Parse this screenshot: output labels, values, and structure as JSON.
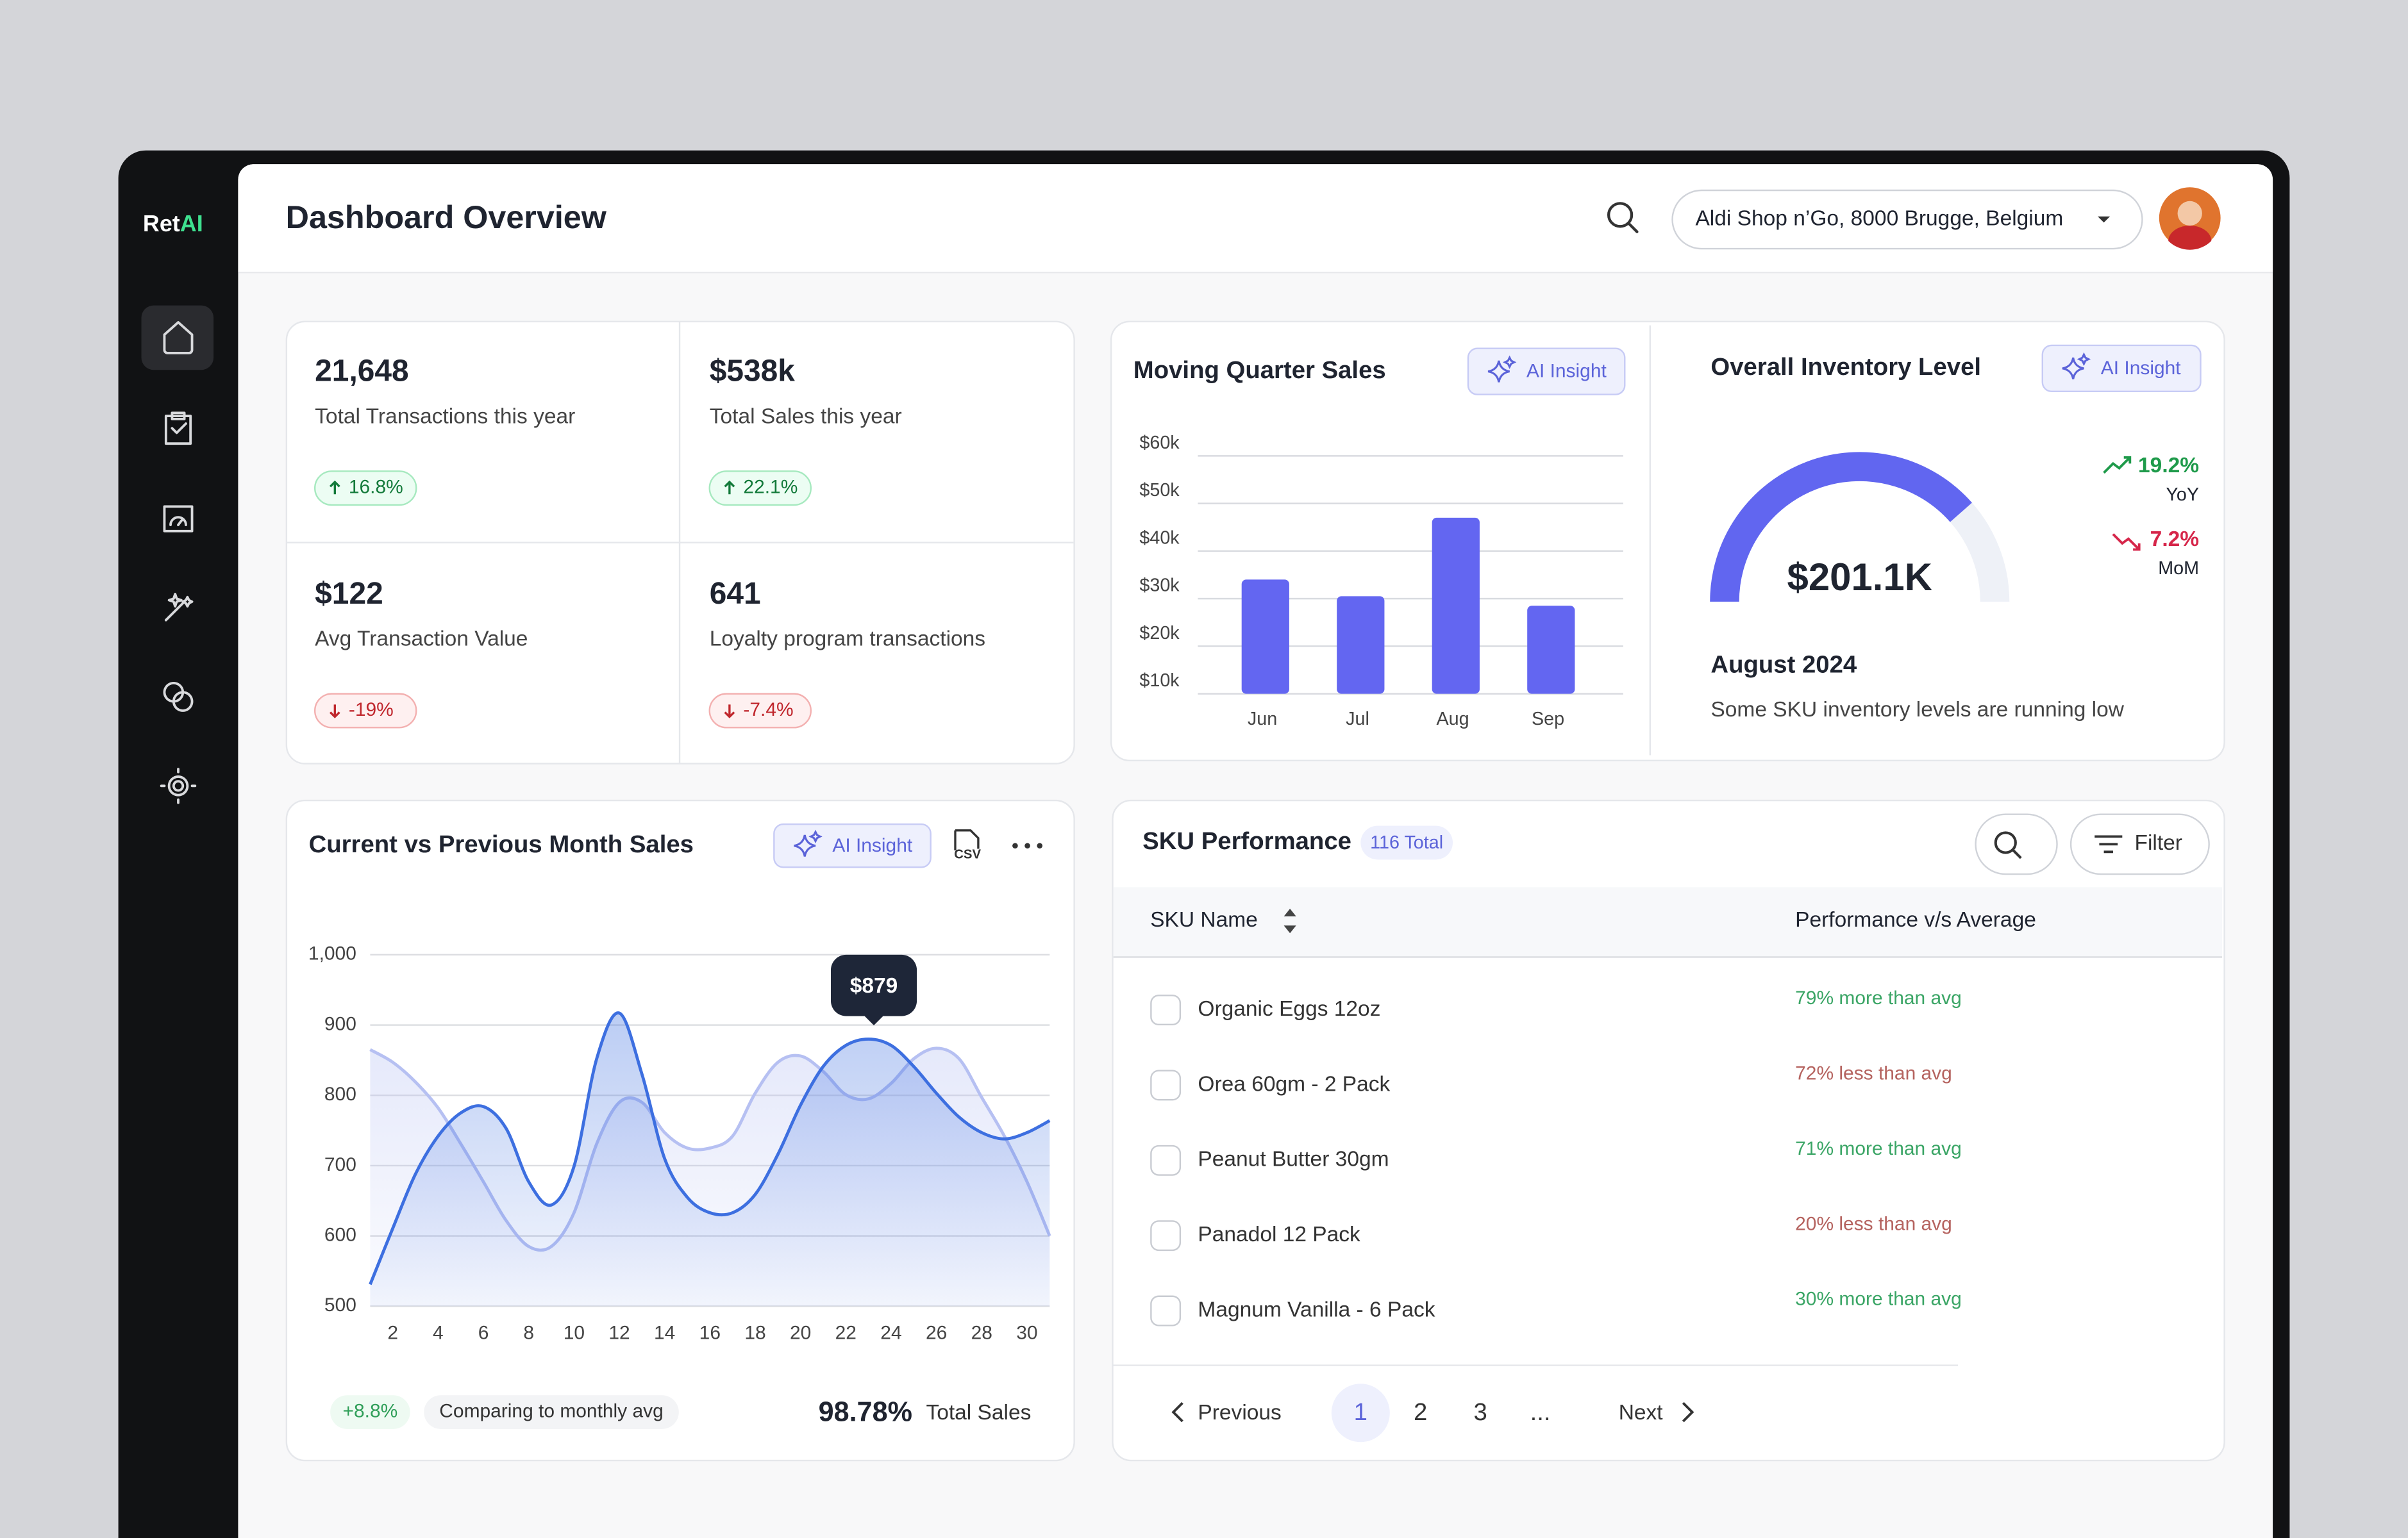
{
  "sidebar": {
    "brand": [
      "Ret",
      "AI"
    ]
  },
  "header": {
    "title": "Dashboard Overview",
    "location": "Aldi Shop n’Go, 8000 Brugge, Belgium"
  },
  "kpis": [
    {
      "value": "21,648",
      "label": "Total Transactions this year",
      "change": "16.8%",
      "trend": "up"
    },
    {
      "value": "$538k",
      "label": "Total Sales this year",
      "change": "22.1%",
      "trend": "up"
    },
    {
      "value": "$122",
      "label": "Avg Transaction Value",
      "change": "-19%",
      "trend": "down"
    },
    {
      "value": "641",
      "label": "Loyalty program transactions",
      "change": "-7.4%",
      "trend": "down"
    }
  ],
  "quarter_sales": {
    "type": "bar",
    "title": "Moving Quarter Sales",
    "button": "AI Insight",
    "categories": [
      "Jun",
      "Jul",
      "Aug",
      "Sep"
    ],
    "values": [
      34000,
      30500,
      47000,
      28500
    ],
    "color": "#6366f1",
    "ylim": [
      10000,
      60000
    ],
    "yticks": [
      {
        "value": 10000,
        "label": "$10k"
      },
      {
        "value": 20000,
        "label": "$20k"
      },
      {
        "value": 30000,
        "label": "$30k"
      },
      {
        "value": 40000,
        "label": "$40k"
      },
      {
        "value": 50000,
        "label": "$50k"
      },
      {
        "value": 60000,
        "label": "$60k"
      }
    ],
    "grid": true
  },
  "inventory": {
    "title": "Overall Inventory Level",
    "button": "AI Insight",
    "value": "$201.1K",
    "fill_percent": 77,
    "color": "#6166f0",
    "changes": [
      {
        "value": "19.2%",
        "label": "YoY",
        "trend": "up"
      },
      {
        "value": "7.2%",
        "label": "MoM",
        "trend": "down"
      }
    ],
    "period": "August 2024",
    "note": "Some SKU inventory levels are running low"
  },
  "monthly_sales": {
    "type": "line",
    "title": "Current vs Previous Month Sales",
    "button": "AI Insight",
    "export": "CSV",
    "x": [
      1,
      2,
      3,
      4,
      5,
      6,
      7,
      8,
      9,
      10,
      11,
      12,
      13,
      14,
      15,
      16,
      17,
      18,
      19,
      20,
      21,
      22,
      23,
      24,
      25,
      26,
      27,
      28,
      29,
      30,
      31
    ],
    "series": [
      {
        "color": "#b6c0f2",
        "values": [
          865,
          847,
          819,
          782,
          731,
          677,
          622,
          585,
          585,
          633,
          731,
          790,
          790,
          747,
          725,
          725,
          742,
          803,
          847,
          856,
          834,
          801,
          795,
          817,
          852,
          867,
          852,
          797,
          742,
          677,
          600
        ]
      },
      {
        "color": "#3d6fe0",
        "values": [
          531,
          611,
          688,
          742,
          775,
          784,
          753,
          677,
          644,
          699,
          852,
          917,
          830,
          710,
          655,
          633,
          633,
          659,
          716,
          786,
          841,
          871,
          880,
          871,
          841,
          803,
          769,
          747,
          738,
          747,
          764
        ]
      }
    ],
    "xlim": [
      1,
      31
    ],
    "xticks": [
      2,
      4,
      6,
      8,
      10,
      12,
      14,
      16,
      18,
      20,
      22,
      24,
      26,
      28,
      30
    ],
    "ylim": [
      500,
      1000
    ],
    "yticks": [
      {
        "value": 1000,
        "label": "1,000"
      },
      900,
      800,
      700,
      600,
      500
    ],
    "grid": true,
    "annotation": "$879",
    "footer": {
      "change": "+8.8%",
      "note": "Comparing to monthly avg",
      "total": "98.78%",
      "total_label": "Total Sales"
    }
  },
  "sku": {
    "title": "SKU Performance",
    "count": "116 Total",
    "filter": "Filter",
    "columns": [
      "SKU Name",
      "Performance v/s Average"
    ],
    "rows": [
      {
        "name": "Organic Eggs 12oz",
        "performance": "79% more than avg",
        "color": "#3aa565"
      },
      {
        "name": "Orea 60gm - 2 Pack",
        "performance": "72% less than avg",
        "color": "#b5635f"
      },
      {
        "name": "Peanut Butter 30gm",
        "performance": "71% more than avg",
        "color": "#3aa565"
      },
      {
        "name": "Panadol 12 Pack",
        "performance": "20% less than avg",
        "color": "#b5635f"
      },
      {
        "name": "Magnum Vanilla - 6 Pack",
        "performance": "30% more than avg",
        "color": "#3aa565"
      }
    ],
    "pagination": {
      "previous": "Previous",
      "pages": [
        "1",
        "2",
        "3",
        "..."
      ],
      "next": "Next",
      "current": 0
    }
  }
}
